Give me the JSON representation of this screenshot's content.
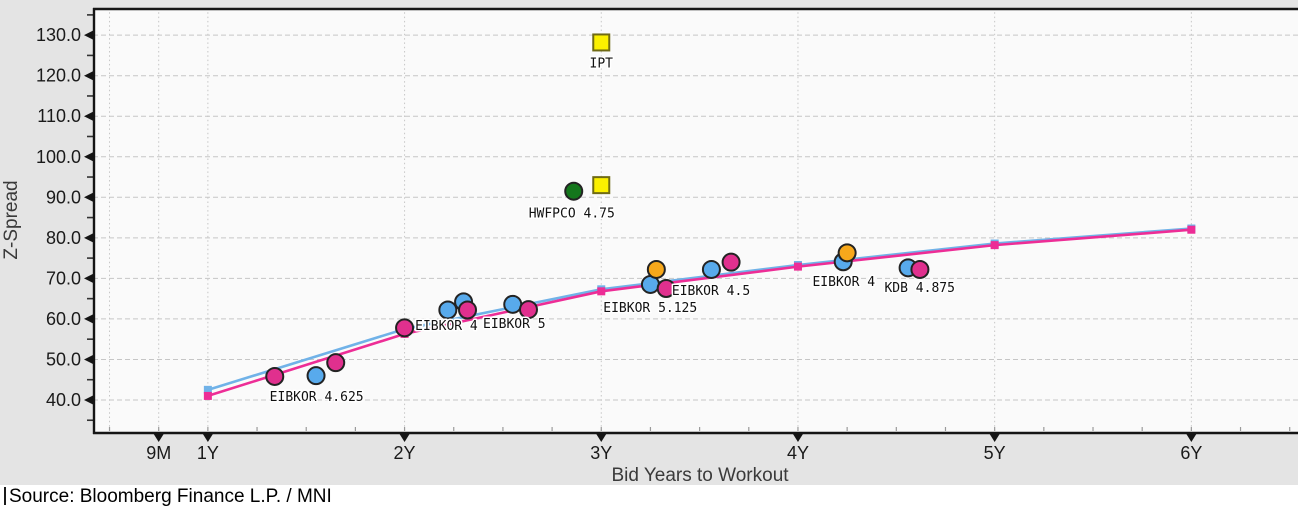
{
  "window": {
    "background": "#e4e4e4",
    "plot_background": "#fafafa",
    "grid_color": "#c6c6c6",
    "axis_color": "#151515",
    "text_color": "#1a1a1a",
    "axis_title_color": "#3a3a3a"
  },
  "source_line": "Source: Bloomberg Finance L.P. / MNI",
  "chart_data": {
    "type": "scatter",
    "title": "",
    "xlabel": "Bid Years to Workout",
    "ylabel": "Z-Spread",
    "xlim_years": [
      0.416,
      6.532
    ],
    "ylim": [
      32.1,
      136.7
    ],
    "grid": true,
    "legend": "none",
    "x_ticks": [
      {
        "label": "9M",
        "x": 0.75
      },
      {
        "label": "1Y",
        "x": 1
      },
      {
        "label": "2Y",
        "x": 2
      },
      {
        "label": "3Y",
        "x": 3
      },
      {
        "label": "4Y",
        "x": 4
      },
      {
        "label": "5Y",
        "x": 5
      },
      {
        "label": "6Y",
        "x": 6
      }
    ],
    "y_ticks": [
      {
        "label": "40.0",
        "y": 40
      },
      {
        "label": "50.0",
        "y": 50
      },
      {
        "label": "60.0",
        "y": 60
      },
      {
        "label": "70.0",
        "y": 70
      },
      {
        "label": "80.0",
        "y": 80
      },
      {
        "label": "90.0",
        "y": 90
      },
      {
        "label": "100.0",
        "y": 100
      },
      {
        "label": "110.0",
        "y": 110
      },
      {
        "label": "120.0",
        "y": 120
      },
      {
        "label": "130.0",
        "y": 130
      }
    ],
    "vgrid_x": [
      0.5,
      0.75,
      1,
      2,
      3,
      4,
      5,
      6
    ],
    "colors": {
      "blue": "#58aaec",
      "magenta": "#e0308e",
      "orange": "#f7a81b",
      "green": "#14771c",
      "yellow": "#fbf000",
      "curve_blue": "#70b2e8",
      "curve_magenta": "#ed2d96",
      "marker_stroke": "#232323",
      "yellow_stroke": "#6f6a14"
    },
    "series": [
      {
        "name": "fair-value-curve-blue",
        "type": "line",
        "color": "curve_blue",
        "marker": "square",
        "x": [
          1,
          2,
          3,
          4,
          5,
          6
        ],
        "y": [
          42.5,
          57.5,
          67.3,
          73.3,
          78.6,
          82.3
        ]
      },
      {
        "name": "fair-value-curve-magenta",
        "type": "line",
        "color": "curve_magenta",
        "marker": "square",
        "x": [
          1,
          2,
          3,
          4,
          5,
          6
        ],
        "y": [
          41.0,
          56.3,
          66.8,
          72.9,
          78.2,
          82.0
        ]
      }
    ],
    "points": [
      {
        "x": 3.0,
        "y": 128.2,
        "marker": "square",
        "color": "yellow",
        "name": "IPT"
      },
      {
        "x": 3.0,
        "y": 93.0,
        "marker": "square",
        "color": "yellow",
        "name": "IPT-2"
      },
      {
        "x": 2.86,
        "y": 91.5,
        "marker": "circle",
        "color": "green",
        "name": "HWFPCO 4.75"
      },
      {
        "x": 1.34,
        "y": 45.8,
        "marker": "circle",
        "color": "magenta",
        "name": "EIBKOR 4.625 a"
      },
      {
        "x": 1.55,
        "y": 46.0,
        "marker": "circle",
        "color": "blue",
        "name": "EIBKOR 4.625 b"
      },
      {
        "x": 1.65,
        "y": 49.2,
        "marker": "circle",
        "color": "magenta",
        "name": "EIBKOR 4.625 c"
      },
      {
        "x": 2.0,
        "y": 57.8,
        "marker": "circle",
        "color": "magenta",
        "name": "EIBKOR 4 a"
      },
      {
        "x": 2.22,
        "y": 62.2,
        "marker": "circle",
        "color": "blue",
        "name": "EIBKOR 4 b"
      },
      {
        "x": 2.3,
        "y": 64.2,
        "marker": "circle",
        "color": "blue",
        "name": "EIBKOR 4 c"
      },
      {
        "x": 2.32,
        "y": 62.2,
        "marker": "circle",
        "color": "magenta",
        "name": "EIBKOR 4 d"
      },
      {
        "x": 2.55,
        "y": 63.6,
        "marker": "circle",
        "color": "blue",
        "name": "EIBKOR 5 a"
      },
      {
        "x": 2.63,
        "y": 62.3,
        "marker": "circle",
        "color": "magenta",
        "name": "EIBKOR 5 b"
      },
      {
        "x": 3.25,
        "y": 68.5,
        "marker": "circle",
        "color": "blue",
        "name": "EIBKOR 5.125 a"
      },
      {
        "x": 3.28,
        "y": 72.2,
        "marker": "circle",
        "color": "orange",
        "name": "EIBKOR 5.125 b"
      },
      {
        "x": 3.33,
        "y": 67.5,
        "marker": "circle",
        "color": "magenta",
        "name": "EIBKOR 5.125 c"
      },
      {
        "x": 3.56,
        "y": 72.2,
        "marker": "circle",
        "color": "blue",
        "name": "EIBKOR 4.5 a"
      },
      {
        "x": 3.66,
        "y": 74.0,
        "marker": "circle",
        "color": "magenta",
        "name": "EIBKOR 4.5 b"
      },
      {
        "x": 4.23,
        "y": 74.1,
        "marker": "circle",
        "color": "blue",
        "name": "EIBKOR 4 e"
      },
      {
        "x": 4.25,
        "y": 76.3,
        "marker": "circle",
        "color": "orange",
        "name": "EIBKOR 4 f"
      },
      {
        "x": 4.56,
        "y": 72.6,
        "marker": "circle",
        "color": "blue",
        "name": "KDB 4.875 a"
      },
      {
        "x": 4.62,
        "y": 72.2,
        "marker": "circle",
        "color": "magenta",
        "name": "KDB 4.875 b"
      }
    ],
    "annotations": [
      {
        "text": "IPT",
        "x": 3.0,
        "y": 123.0
      },
      {
        "text": "HWFPCO 4.75",
        "x": 2.85,
        "y": 86.0
      },
      {
        "text": "EIBKOR 4.625",
        "x": 1.553,
        "y": 40.7
      },
      {
        "text": "EIBKOR 4",
        "x": 2.213,
        "y": 58.2
      },
      {
        "text": "EIBKOR 5",
        "x": 2.558,
        "y": 58.7
      },
      {
        "text": "EIBKOR 5.125",
        "x": 3.249,
        "y": 62.7
      },
      {
        "text": "EIBKOR 4.5",
        "x": 3.558,
        "y": 66.9
      },
      {
        "text": "EIBKOR 4",
        "x": 4.233,
        "y": 69.1
      },
      {
        "text": "KDB 4.875",
        "x": 4.619,
        "y": 67.6
      }
    ]
  }
}
